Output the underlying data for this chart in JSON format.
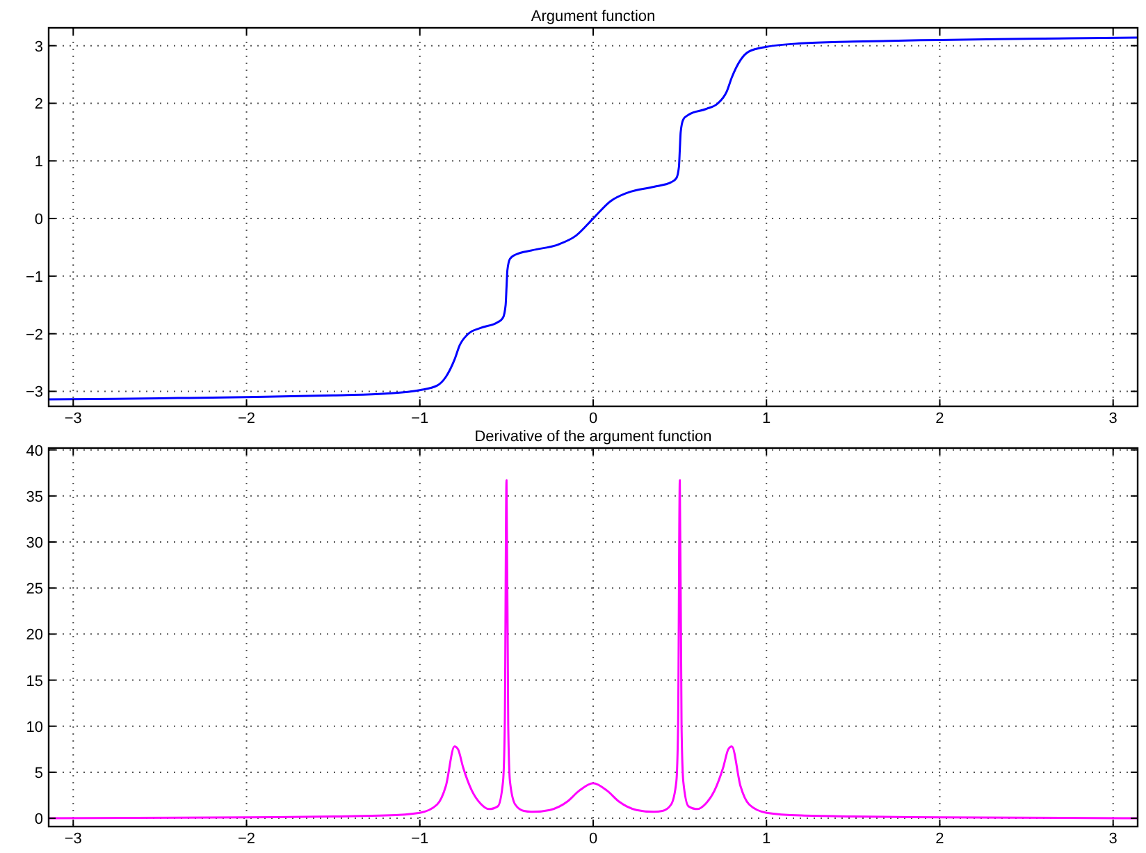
{
  "chart_data": [
    {
      "type": "line",
      "title": "Argument function",
      "grid": true,
      "line_style": "solid",
      "marker": "none",
      "color": "#0000ff",
      "xlim": [
        -3.1416,
        3.1416
      ],
      "ylim": [
        -3.26,
        3.31
      ],
      "xticks": [
        {
          "value": -3,
          "label": "−3"
        },
        {
          "value": -2,
          "label": "−2"
        },
        {
          "value": -1,
          "label": "−1"
        },
        0,
        1,
        2,
        3
      ],
      "yticks": [
        {
          "value": -3,
          "label": "−3"
        },
        {
          "value": -2,
          "label": "−2"
        },
        {
          "value": -1,
          "label": "−1"
        },
        0,
        1,
        2,
        3
      ],
      "x": [
        -3.14,
        -2.5,
        -2,
        -1.5,
        -1.2,
        -1,
        -0.9,
        -0.85,
        -0.8,
        -0.77,
        -0.72,
        -0.65,
        -0.55,
        -0.52,
        -0.505,
        -0.5,
        -0.495,
        -0.48,
        -0.45,
        -0.35,
        -0.2,
        -0.1,
        0,
        0.1,
        0.2,
        0.35,
        0.45,
        0.48,
        0.495,
        0.5,
        0.505,
        0.52,
        0.55,
        0.65,
        0.72,
        0.77,
        0.8,
        0.85,
        0.9,
        1,
        1.2,
        1.5,
        2,
        2.5,
        3.14
      ],
      "values": [
        -3.14,
        -3.12,
        -3.1,
        -3.07,
        -3.04,
        -2.98,
        -2.9,
        -2.75,
        -2.45,
        -2.2,
        -2,
        -1.9,
        -1.8,
        -1.72,
        -1.5,
        -1.2,
        -0.9,
        -0.7,
        -0.63,
        -0.55,
        -0.45,
        -0.3,
        0,
        0.3,
        0.45,
        0.55,
        0.63,
        0.7,
        0.9,
        1.2,
        1.5,
        1.72,
        1.8,
        1.9,
        2,
        2.2,
        2.45,
        2.75,
        2.9,
        2.98,
        3.04,
        3.07,
        3.1,
        3.12,
        3.14
      ]
    },
    {
      "type": "line",
      "title": "Derivative of the argument function",
      "grid": true,
      "line_style": "solid",
      "marker": "none",
      "color": "#ff00ff",
      "xlim": [
        -3.1416,
        3.1416
      ],
      "ylim": [
        -0.9,
        40.2
      ],
      "xticks": [
        {
          "value": -3,
          "label": "−3"
        },
        {
          "value": -2,
          "label": "−2"
        },
        {
          "value": -1,
          "label": "−1"
        },
        0,
        1,
        2,
        3
      ],
      "yticks": [
        0,
        5,
        10,
        15,
        20,
        25,
        30,
        35,
        40
      ],
      "x": [
        -3.14,
        -2,
        -1.5,
        -1.2,
        -1,
        -0.9,
        -0.85,
        -0.8,
        -0.78,
        -0.75,
        -0.7,
        -0.65,
        -0.6,
        -0.55,
        -0.52,
        -0.51,
        -0.5,
        -0.49,
        -0.48,
        -0.45,
        -0.4,
        -0.35,
        -0.25,
        -0.15,
        -0.08,
        0,
        0.08,
        0.15,
        0.25,
        0.35,
        0.4,
        0.45,
        0.48,
        0.49,
        0.5,
        0.51,
        0.52,
        0.55,
        0.6,
        0.65,
        0.7,
        0.75,
        0.78,
        0.8,
        0.85,
        0.9,
        1,
        1.2,
        1.5,
        2,
        3.14
      ],
      "values": [
        0,
        0.1,
        0.2,
        0.3,
        0.6,
        1.5,
        3.5,
        7.8,
        7.5,
        5.5,
        3,
        1.6,
        1,
        1.3,
        4,
        10,
        36.7,
        10,
        4,
        1.5,
        0.8,
        0.7,
        0.9,
        1.8,
        3,
        3.8,
        3,
        1.8,
        0.9,
        0.7,
        0.8,
        1.5,
        4,
        10,
        36.7,
        10,
        4,
        1.3,
        1,
        1.6,
        3,
        5.5,
        7.5,
        7.8,
        3.5,
        1.5,
        0.6,
        0.3,
        0.2,
        0.1,
        0
      ]
    }
  ]
}
